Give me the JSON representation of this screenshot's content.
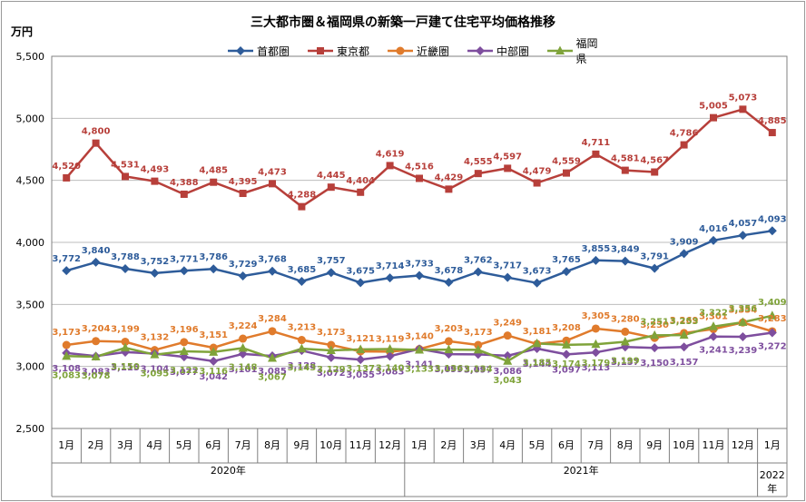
{
  "chart_data": {
    "type": "line",
    "title": "三大都市圏＆福岡県の新築一戸建て住宅平均価格推移",
    "ylabel": "万円",
    "ylim": [
      2500,
      5500
    ],
    "yticks": [
      "2,500",
      "3,000",
      "3,500",
      "4,000",
      "4,500",
      "5,000",
      "5,500"
    ],
    "categories": [
      "1月",
      "2月",
      "3月",
      "4月",
      "5月",
      "6月",
      "7月",
      "8月",
      "9月",
      "10月",
      "11月",
      "12月",
      "1月",
      "2月",
      "3月",
      "4月",
      "5月",
      "6月",
      "7月",
      "8月",
      "9月",
      "10月",
      "11月",
      "12月",
      "1月"
    ],
    "year_groups": [
      {
        "label": "2020年",
        "start": 0,
        "end": 11
      },
      {
        "label": "2021年",
        "start": 12,
        "end": 23
      },
      {
        "label": "2022\n年",
        "start": 24,
        "end": 24
      }
    ],
    "grid": true,
    "legend_position": "top-center",
    "series": [
      {
        "name": "首都圏",
        "color": "#2E5C9A",
        "marker": "diamond",
        "values": [
          3772,
          3840,
          3788,
          3752,
          3771,
          3786,
          3729,
          3768,
          3685,
          3757,
          3675,
          3714,
          3733,
          3678,
          3762,
          3717,
          3673,
          3765,
          3855,
          3849,
          3791,
          3909,
          4016,
          4057,
          4093
        ],
        "labels": [
          "3,772",
          "3,840",
          "3,788",
          "3,752",
          "3,771",
          "3,786",
          "3,729",
          "3,768",
          "3,685",
          "3,757",
          "3,675",
          "3,714",
          "3,733",
          "3,678",
          "3,762",
          "3,717",
          "3,673",
          "3,765",
          "3,855",
          "3,849",
          "3,791",
          "3,909",
          "4,016",
          "4,057",
          "4,093"
        ]
      },
      {
        "name": "東京都",
        "color": "#B73F3A",
        "marker": "square",
        "values": [
          4520,
          4800,
          4531,
          4493,
          4388,
          4485,
          4395,
          4473,
          4288,
          4445,
          4404,
          4619,
          4516,
          4429,
          4555,
          4597,
          4479,
          4559,
          4711,
          4581,
          4567,
          4786,
          5005,
          5073,
          4885
        ],
        "labels": [
          "4,520",
          "4,800",
          "4,531",
          "4,493",
          "4,388",
          "4,485",
          "4,395",
          "4,473",
          "4,288",
          "4,445",
          "4,404",
          "4,619",
          "4,516",
          "4,429",
          "4,555",
          "4,597",
          "4,479",
          "4,559",
          "4,711",
          "4,581",
          "4,567",
          "4,786",
          "5,005",
          "5,073",
          "4,885"
        ]
      },
      {
        "name": "近畿圏",
        "color": "#E07B2C",
        "marker": "circle",
        "values": [
          3173,
          3204,
          3199,
          3132,
          3196,
          3151,
          3224,
          3284,
          3213,
          3173,
          3121,
          3119,
          3140,
          3203,
          3173,
          3249,
          3181,
          3208,
          3305,
          3280,
          3230,
          3269,
          3301,
          3354,
          3283
        ],
        "labels": [
          "3,173",
          "3,204",
          "3,199",
          "3,132",
          "3,196",
          "3,151",
          "3,224",
          "3,284",
          "3,213",
          "3,173",
          "3,121",
          "3,119",
          "3,140",
          "3,203",
          "3,173",
          "3,249",
          "3,181",
          "3,208",
          "3,305",
          "3,280",
          "3,230",
          "3,269",
          "3,301",
          "3,354",
          "3,283"
        ]
      },
      {
        "name": "中部圏",
        "color": "#7E4E9E",
        "marker": "diamond",
        "values": [
          3108,
          3083,
          3115,
          3104,
          3077,
          3042,
          3101,
          3085,
          3128,
          3072,
          3055,
          3083,
          3141,
          3099,
          3097,
          3086,
          3144,
          3097,
          3113,
          3157,
          3150,
          3157,
          3241,
          3239,
          3272
        ],
        "labels": [
          "3,108",
          "3,083",
          "3,115",
          "3,104",
          "3,077",
          "3,042",
          "3,101",
          "3,085",
          "3,128",
          "3,072",
          "3,055",
          "3,083",
          "3,141",
          "3,099",
          "3,097",
          "3,086",
          "3,144",
          "3,097",
          "3,113",
          "3,157",
          "3,150",
          "3,157",
          "3,241",
          "3,239",
          "3,272"
        ]
      },
      {
        "name": "福岡県",
        "color": "#7FA33A",
        "marker": "triangle",
        "values": [
          3083,
          3078,
          3150,
          3095,
          3122,
          3116,
          3148,
          3067,
          3143,
          3129,
          3137,
          3140,
          3133,
          3136,
          3134,
          3043,
          3185,
          3174,
          3179,
          3199,
          3251,
          3253,
          3322,
          3356,
          3409
        ],
        "labels": [
          "3,083",
          "3,078",
          "3,150",
          "3,095",
          "3,122",
          "3,116",
          "3,148",
          "3,067",
          "3,143",
          "3,129",
          "3,137",
          "3,140",
          "3,133",
          "3,136",
          "3,134",
          "3,043",
          "3,185",
          "3,174",
          "3,179",
          "3,199",
          "3,251",
          "3,253",
          "3,322",
          "3,356",
          "3,409"
        ]
      }
    ]
  }
}
